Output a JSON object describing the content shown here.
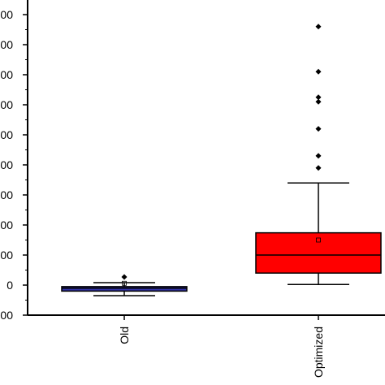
{
  "chart_data": {
    "type": "box",
    "title": "",
    "xlabel": "",
    "ylabel": "",
    "ylim": [
      -1000,
      9500
    ],
    "yticks": [
      {
        "value": -1000,
        "label": "000"
      },
      {
        "value": 0,
        "label": "0"
      },
      {
        "value": 1000,
        "label": "000"
      },
      {
        "value": 2000,
        "label": "000"
      },
      {
        "value": 3000,
        "label": "000"
      },
      {
        "value": 4000,
        "label": "000"
      },
      {
        "value": 5000,
        "label": "000"
      },
      {
        "value": 6000,
        "label": "000"
      },
      {
        "value": 7000,
        "label": "000"
      },
      {
        "value": 8000,
        "label": "000"
      },
      {
        "value": 9000,
        "label": "000"
      }
    ],
    "categories": [
      "Old",
      "Optimized"
    ],
    "boxes": [
      {
        "category": "Old",
        "color": "#3333aa",
        "whisker_low": -350,
        "q1": -200,
        "median": -100,
        "q3": -50,
        "whisker_high": 80,
        "mean": 60,
        "outliers": [
          270
        ]
      },
      {
        "category": "Optimized",
        "color": "#ff0000",
        "whisker_low": 20,
        "q1": 400,
        "median": 1000,
        "q3": 1740,
        "whisker_high": 3400,
        "mean": 1500,
        "outliers": [
          3900,
          4300,
          5200,
          6100,
          6250,
          7100,
          8600
        ]
      }
    ]
  }
}
